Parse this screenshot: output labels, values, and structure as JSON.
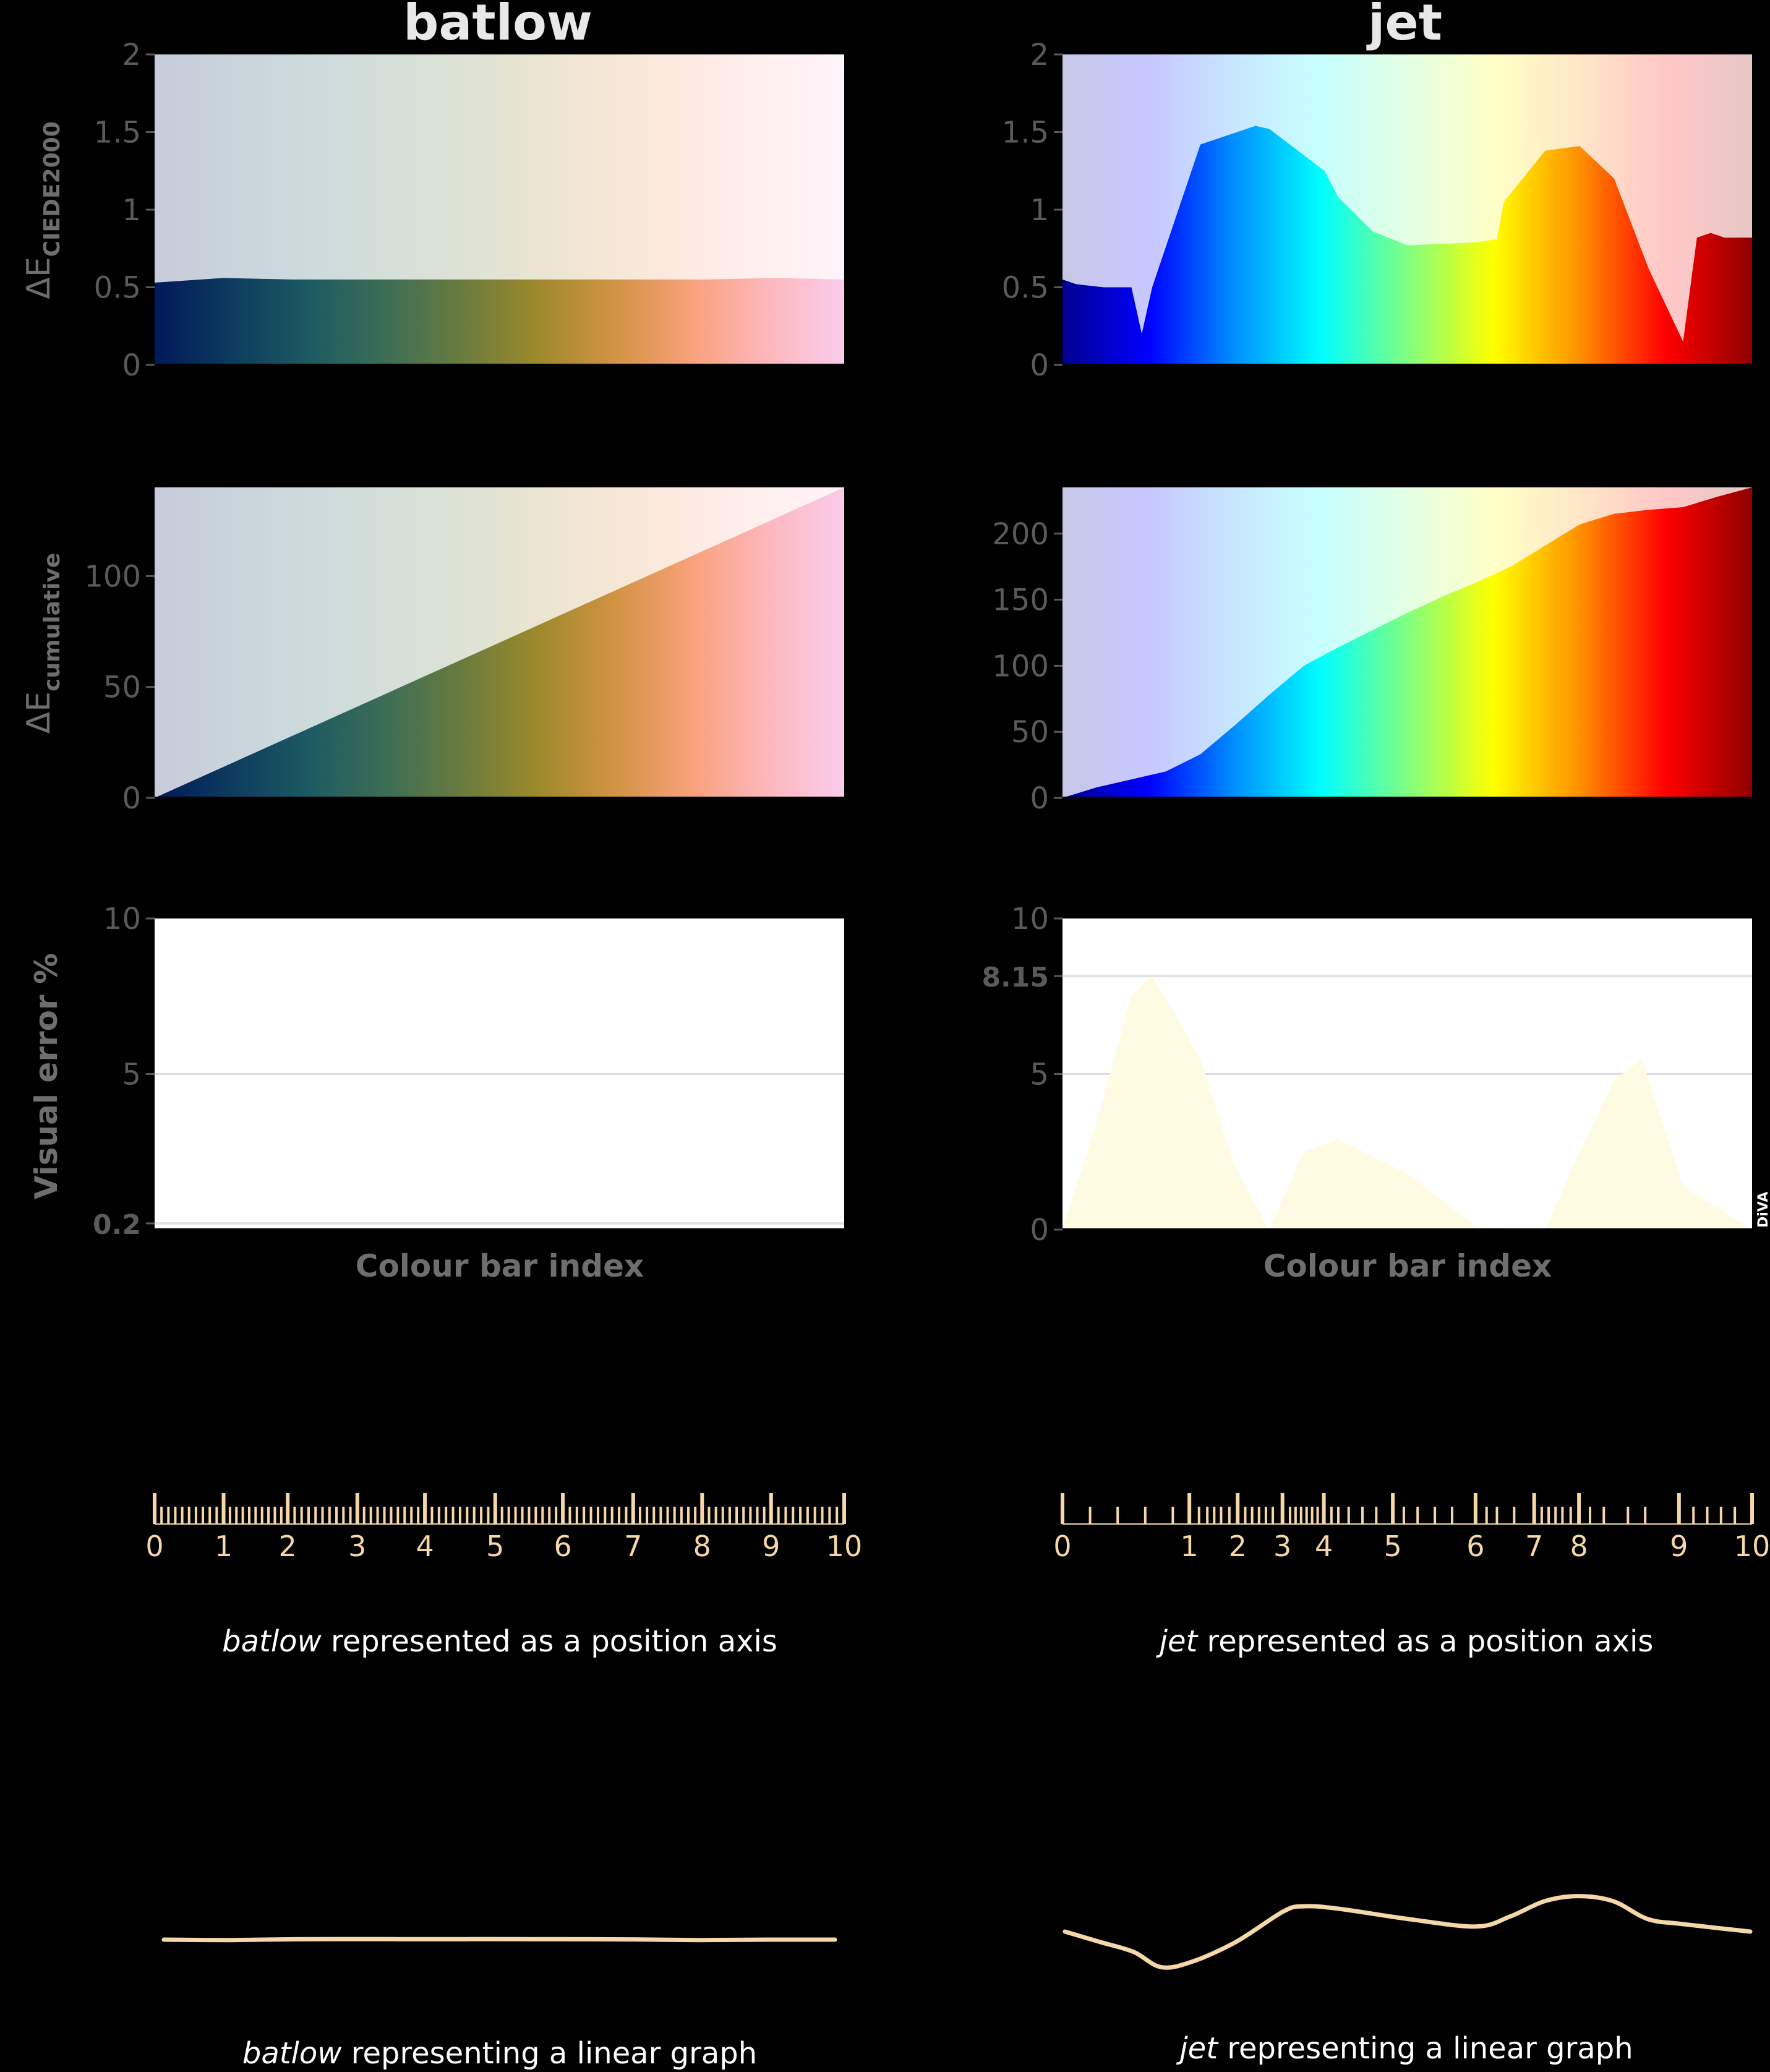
{
  "colors": {
    "background": "#000000",
    "tick_label": "#5a5a5a",
    "axis_label": "#6e6e6e",
    "title": "#e8e8e8",
    "axis_ruler": "#f5d7a8",
    "caption": "#ffffff",
    "error_fill": "#fffbe3",
    "plot_background": "#ffffff",
    "batlow": [
      "#011959",
      "#0d3b5e",
      "#1c5a62",
      "#3c6d56",
      "#687b3e",
      "#9d892b",
      "#d29343",
      "#f8a17b",
      "#fdb7bc",
      "#facceb"
    ],
    "jet": [
      "#000090",
      "#0000ff",
      "#0090ff",
      "#00ffff",
      "#80ff80",
      "#ffff00",
      "#ff9000",
      "#ff0000",
      "#900000"
    ]
  },
  "titles": {
    "batlow": "batlow",
    "jet": "jet"
  },
  "row_labels": {
    "delta_e_main": "ΔE",
    "delta_e_ciede_sub": "CIEDE2000",
    "delta_e_cum_main": "ΔE",
    "delta_e_cum_sub": "cumulative",
    "visual_error": "Visual error %"
  },
  "xlabel": "Colour bar index",
  "watermark": "DiVA",
  "captions": {
    "batlow_axis_name": "batlow",
    "batlow_axis_rest": " represented as a position axis",
    "jet_axis_name": "jet",
    "jet_axis_rest": " represented as a position axis",
    "batlow_graph_name": "batlow",
    "batlow_graph_rest": " representing a linear graph",
    "jet_graph_name": "jet",
    "jet_graph_rest": " representing a linear graph"
  },
  "chart_data": [
    {
      "id": "batlow-delta-e",
      "type": "area",
      "colormap": "batlow",
      "ylabel": "ΔE CIEDE2000",
      "ylim": [
        0,
        2
      ],
      "yticks": [
        "0",
        "0.5",
        "1",
        "1.5",
        "2"
      ],
      "x": [
        0,
        1,
        2,
        3,
        4,
        5,
        6,
        7,
        8,
        9,
        10
      ],
      "y": [
        0.53,
        0.56,
        0.55,
        0.55,
        0.55,
        0.55,
        0.55,
        0.55,
        0.55,
        0.56,
        0.55
      ]
    },
    {
      "id": "jet-delta-e",
      "type": "area",
      "colormap": "jet",
      "ylim": [
        0,
        2
      ],
      "yticks": [
        "0",
        "0.5",
        "1",
        "1.5",
        "2"
      ],
      "x": [
        0,
        0.2,
        0.6,
        1.0,
        1.15,
        1.3,
        2.0,
        2.8,
        3.0,
        3.8,
        4.0,
        4.5,
        5.0,
        6.0,
        6.3,
        6.4,
        7.0,
        7.5,
        8.0,
        8.5,
        9.0,
        9.2,
        9.4,
        9.6,
        10.0
      ],
      "y": [
        0.55,
        0.52,
        0.5,
        0.5,
        0.2,
        0.5,
        1.42,
        1.54,
        1.52,
        1.25,
        1.08,
        0.86,
        0.77,
        0.79,
        0.81,
        1.05,
        1.38,
        1.41,
        1.2,
        0.62,
        0.15,
        0.82,
        0.85,
        0.82,
        0.82
      ]
    },
    {
      "id": "batlow-cumulative",
      "type": "area",
      "colormap": "batlow",
      "ylabel": "ΔE cumulative",
      "ylim": [
        0,
        140
      ],
      "yticks": [
        "0",
        "50",
        "100"
      ],
      "x": [
        0,
        10
      ],
      "y": [
        0,
        140
      ]
    },
    {
      "id": "jet-cumulative",
      "type": "area",
      "colormap": "jet",
      "ylim": [
        0,
        235
      ],
      "yticks": [
        "0",
        "50",
        "100",
        "150",
        "200"
      ],
      "x": [
        0,
        0.5,
        1.0,
        1.5,
        2.0,
        2.5,
        3.0,
        3.5,
        4.0,
        4.5,
        5.0,
        5.5,
        6.0,
        6.5,
        7.0,
        7.5,
        8.0,
        8.5,
        9.0,
        9.5,
        10.0
      ],
      "y": [
        0,
        8,
        14,
        20,
        33,
        55,
        78,
        100,
        114,
        127,
        140,
        152,
        163,
        175,
        191,
        207,
        215,
        218,
        220,
        228,
        235
      ]
    },
    {
      "id": "batlow-visual-error",
      "type": "area",
      "ylabel": "Visual error %",
      "xlabel": "Colour bar index",
      "ylim": [
        0,
        10
      ],
      "yticks": [
        "0.2",
        "5",
        "10"
      ],
      "highlight_tick": "0.2",
      "x": [
        0,
        10
      ],
      "y": [
        0.2,
        0.2
      ]
    },
    {
      "id": "jet-visual-error",
      "type": "area",
      "xlabel": "Colour bar index",
      "ylim": [
        0,
        10
      ],
      "yticks": [
        "0",
        "5",
        "8.15",
        "10"
      ],
      "highlight_tick": "8.15",
      "x": [
        0,
        0.5,
        1.0,
        1.3,
        2.0,
        2.5,
        3.0,
        3.5,
        4.0,
        5.0,
        6.0,
        7.0,
        7.5,
        8.0,
        8.4,
        9.0,
        10.0
      ],
      "y": [
        0,
        3.5,
        7.5,
        8.15,
        5.5,
        2.0,
        0,
        2.5,
        2.9,
        1.8,
        0.1,
        0,
        2.5,
        4.8,
        5.5,
        1.4,
        0
      ]
    },
    {
      "id": "batlow-position-axis",
      "type": "scatter",
      "colormap": "batlow",
      "labels": [
        "0",
        "1",
        "2",
        "3",
        "4",
        "5",
        "6",
        "7",
        "8",
        "9",
        "10"
      ],
      "x": [
        0,
        1.0,
        1.93,
        2.94,
        3.92,
        4.94,
        5.92,
        6.94,
        7.94,
        8.94,
        10.0
      ]
    },
    {
      "id": "jet-position-axis",
      "type": "scatter",
      "colormap": "jet",
      "labels": [
        "0",
        "1",
        "2",
        "3",
        "4",
        "5",
        "6",
        "7",
        "8",
        "9",
        "10"
      ],
      "x": [
        0,
        1.84,
        2.54,
        3.19,
        3.79,
        4.79,
        5.99,
        6.84,
        7.49,
        8.94,
        10.0
      ],
      "minor_ticks": [
        0.4,
        0.8,
        1.2,
        1.6,
        1.98,
        2.1,
        2.2,
        2.3,
        2.42,
        2.65,
        2.75,
        2.85,
        2.95,
        3.05,
        3.3,
        3.38,
        3.46,
        3.54,
        3.62,
        3.7,
        3.9,
        4.0,
        4.15,
        4.35,
        4.55,
        4.95,
        5.15,
        5.4,
        5.65,
        6.15,
        6.3,
        6.55,
        6.95,
        7.05,
        7.15,
        7.25,
        7.37,
        7.65,
        7.85,
        8.2,
        8.45,
        9.15,
        9.35,
        9.55,
        9.75
      ]
    },
    {
      "id": "batlow-linear-graph",
      "type": "line",
      "x": [
        0,
        1,
        2,
        3,
        4,
        5,
        6,
        7,
        8,
        9,
        10
      ],
      "y": [
        1.0,
        0.997,
        1.003,
        1.004,
        1.003,
        1.004,
        1.003,
        1.002,
        0.997,
        1.0,
        1.0
      ]
    },
    {
      "id": "jet-linear-graph",
      "type": "line",
      "x": [
        0,
        0.5,
        1.0,
        1.4,
        1.84,
        2.5,
        3.19,
        3.5,
        4.0,
        5.0,
        6.0,
        6.5,
        7.0,
        7.49,
        8.0,
        8.5,
        9.0,
        10.0
      ],
      "y": [
        1.0,
        0.6,
        0.2,
        -0.4,
        -0.2,
        0.6,
        1.8,
        2.0,
        1.9,
        1.5,
        1.2,
        1.6,
        2.2,
        2.4,
        2.2,
        1.5,
        1.3,
        1.0
      ]
    }
  ]
}
